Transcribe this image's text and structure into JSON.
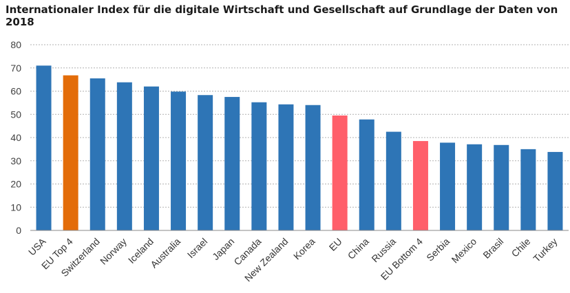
{
  "chart_data": {
    "type": "bar",
    "title": "Internationaler Index für die digitale Wirtschaft und Gesellschaft auf Grundlage der Daten von 2018",
    "xlabel": "",
    "ylabel": "",
    "ylim": [
      0,
      80
    ],
    "yticks": [
      0,
      10,
      20,
      30,
      40,
      50,
      60,
      70,
      80
    ],
    "grid": "horizontal-dashed",
    "legend": "none",
    "categories": [
      "USA",
      "EU Top 4",
      "Switzerland",
      "Norway",
      "Iceland",
      "Australia",
      "Israel",
      "Japan",
      "Canada",
      "New Zealand",
      "Korea",
      "EU",
      "China",
      "Russia",
      "EU Bottom 4",
      "Serbia",
      "Mexico",
      "Brasil",
      "Chile",
      "Turkey"
    ],
    "values": [
      71,
      66.8,
      65.5,
      63.8,
      62,
      59.8,
      58.3,
      57.5,
      55.2,
      54.3,
      54,
      49.5,
      47.8,
      42.5,
      38.5,
      37.8,
      37.1,
      36.8,
      35,
      33.8
    ],
    "bar_colors": [
      "#2e75b6",
      "#e36c09",
      "#2e75b6",
      "#2e75b6",
      "#2e75b6",
      "#2e75b6",
      "#2e75b6",
      "#2e75b6",
      "#2e75b6",
      "#2e75b6",
      "#2e75b6",
      "#ff5f6a",
      "#2e75b6",
      "#2e75b6",
      "#ff5f6a",
      "#2e75b6",
      "#2e75b6",
      "#2e75b6",
      "#2e75b6",
      "#2e75b6"
    ],
    "colors": {
      "default": "#2e75b6",
      "eu_top": "#e36c09",
      "eu_highlight": "#ff5f6a",
      "grid": "#b0b0b0",
      "axis": "#888888"
    }
  }
}
